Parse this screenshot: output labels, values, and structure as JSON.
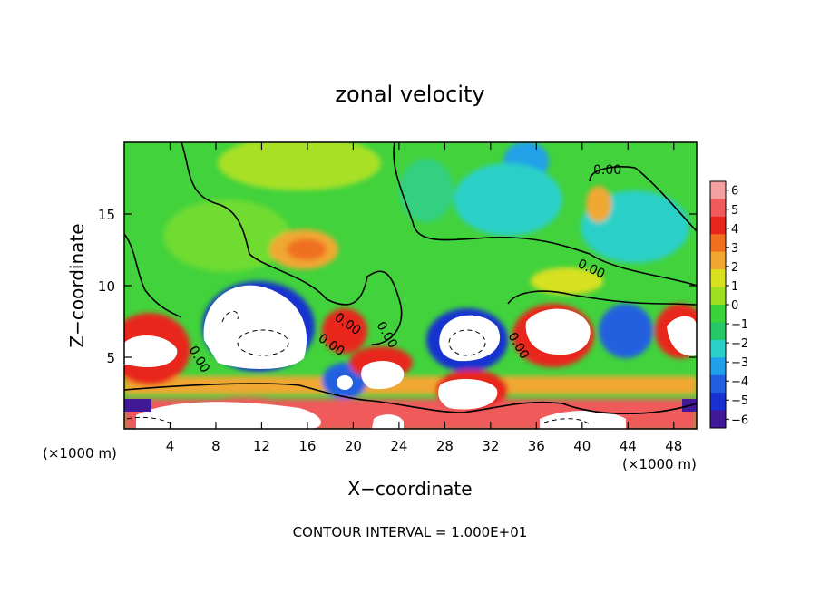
{
  "chart_data": {
    "type": "heatmap",
    "title": "zonal velocity",
    "xlabel": "X−coordinate",
    "ylabel": "Z−coordinate",
    "x_unit_left": "(×1000 m)",
    "x_unit_right": "(×1000 m)",
    "xlim": [
      0,
      50
    ],
    "ylim": [
      0,
      20
    ],
    "x_ticks": [
      4,
      8,
      12,
      16,
      20,
      24,
      28,
      32,
      36,
      40,
      44,
      48
    ],
    "y_ticks": [
      5,
      10,
      15
    ],
    "colorbar": {
      "ticks": [
        6,
        5,
        4,
        3,
        2,
        1,
        0,
        -1,
        -2,
        -3,
        -4,
        -5,
        -6
      ],
      "colors": [
        "#f4a0a0",
        "#f05a5a",
        "#e8251c",
        "#f07020",
        "#f0a830",
        "#d8e020",
        "#9ee020",
        "#3cd23c",
        "#24c866",
        "#2ad0c8",
        "#20a0e8",
        "#2060e0",
        "#1830d0",
        "#401898"
      ]
    },
    "contour_labels": [
      "0.00",
      "0.00",
      "0.00",
      "0.00",
      "0.00",
      "0.00",
      "0.00"
    ],
    "footer": "CONTOUR INTERVAL = 1.000E+01"
  }
}
